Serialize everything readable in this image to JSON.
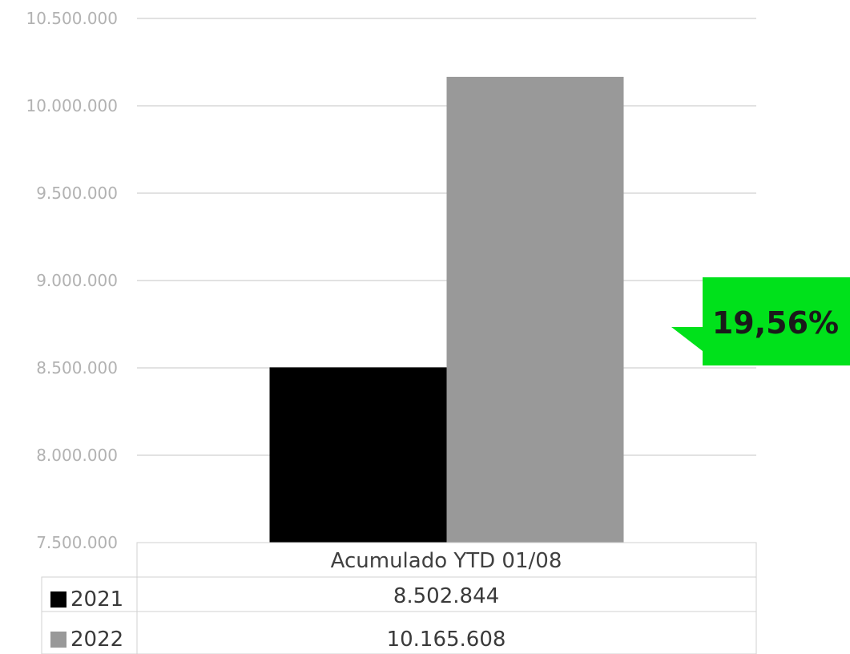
{
  "chart_data": {
    "type": "bar",
    "categories": [
      "Acumulado YTD 01/08"
    ],
    "series": [
      {
        "name": "2021",
        "values": [
          8502844
        ],
        "value_label": "8.502.844",
        "color": "#000000"
      },
      {
        "name": "2022",
        "values": [
          10165608
        ],
        "value_label": "10.165.608",
        "color": "#999999"
      }
    ],
    "ylim": [
      7500000,
      10500000
    ],
    "ytick_values": [
      7500000,
      8000000,
      8500000,
      9000000,
      9500000,
      10000000,
      10500000
    ],
    "ytick_labels": [
      "7.500.000",
      "8.000.000",
      "8.500.000",
      "9.000.000",
      "9.500.000",
      "10.000.000",
      "10.500.000"
    ],
    "grid": true,
    "legend": "data-table",
    "annotation": {
      "text": "19,56%",
      "color": "#00e11b"
    }
  }
}
